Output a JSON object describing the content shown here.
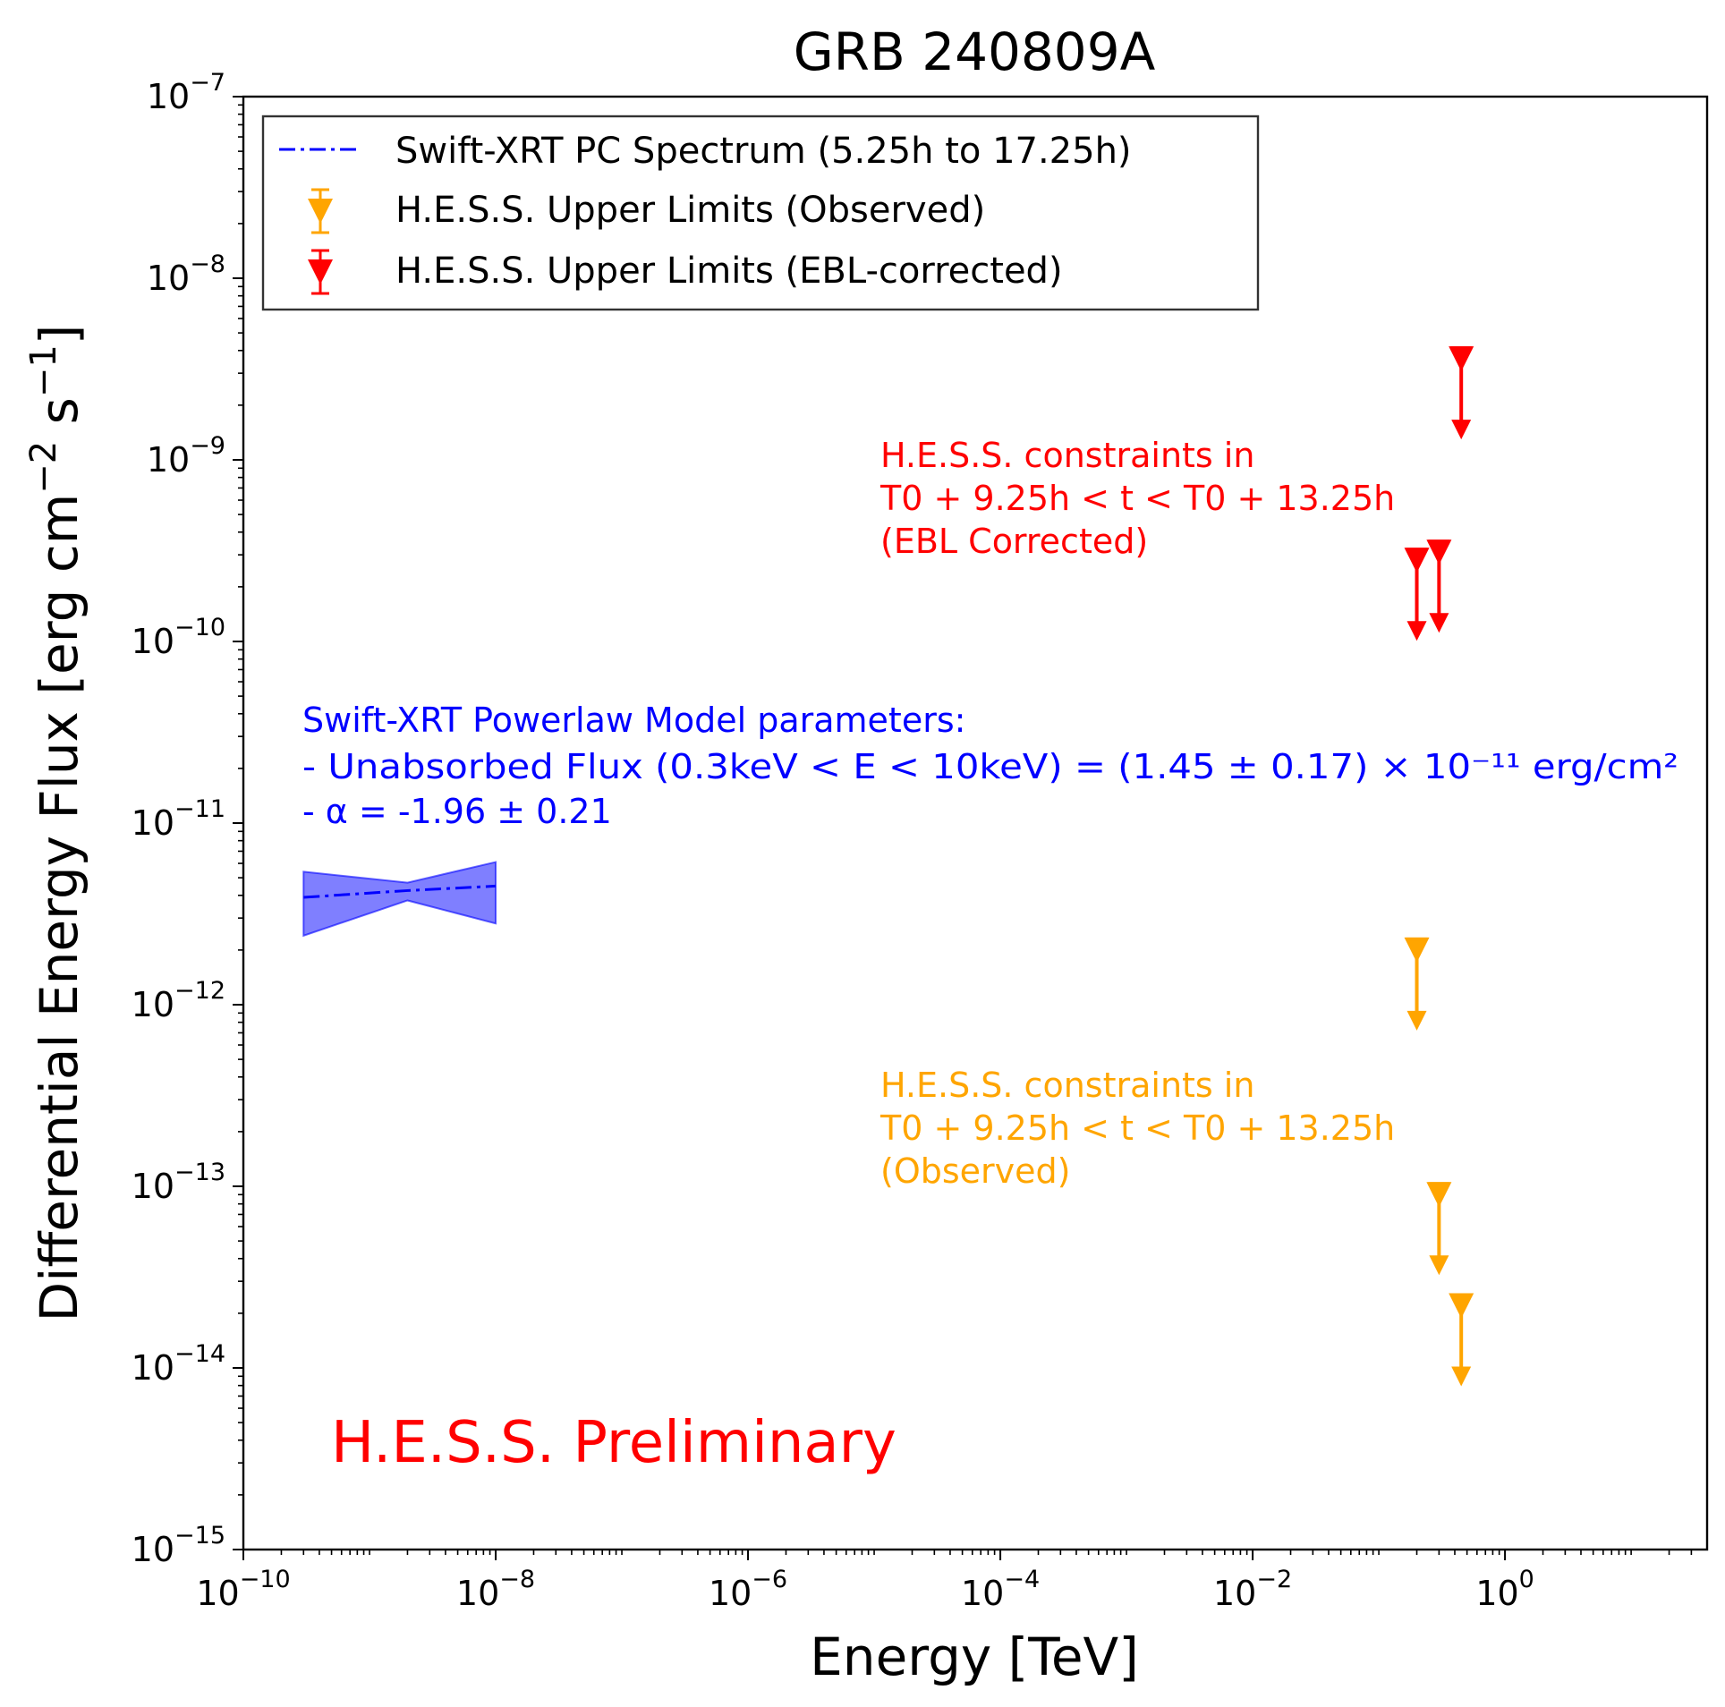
{
  "chart_data": {
    "type": "scatter",
    "title": "GRB 240809A",
    "xlabel": "Energy [TeV]",
    "ylabel": "Differential Energy Flux [erg cm",
    "ylabel_exp1": "−2",
    "ylabel_mid": " s",
    "ylabel_exp2": "−1",
    "ylabel_end": "]",
    "x_scale": "log",
    "y_scale": "log",
    "xlim": [
      1e-10,
      40
    ],
    "ylim": [
      1e-15,
      1e-07
    ],
    "grid": false,
    "legend_position": "top-left",
    "x_ticks": [
      {
        "value": 1e-10,
        "base": "10",
        "exp": "−10"
      },
      {
        "value": 1e-08,
        "base": "10",
        "exp": "−8"
      },
      {
        "value": 1e-06,
        "base": "10",
        "exp": "−6"
      },
      {
        "value": 0.0001,
        "base": "10",
        "exp": "−4"
      },
      {
        "value": 0.01,
        "base": "10",
        "exp": "−2"
      },
      {
        "value": 1,
        "base": "10",
        "exp": "0"
      }
    ],
    "y_ticks": [
      {
        "value": 1e-07,
        "base": "10",
        "exp": "−7"
      },
      {
        "value": 1e-08,
        "base": "10",
        "exp": "−8"
      },
      {
        "value": 1e-09,
        "base": "10",
        "exp": "−9"
      },
      {
        "value": 1e-10,
        "base": "10",
        "exp": "−10"
      },
      {
        "value": 1e-11,
        "base": "10",
        "exp": "−11"
      },
      {
        "value": 1e-12,
        "base": "10",
        "exp": "−12"
      },
      {
        "value": 1e-13,
        "base": "10",
        "exp": "−13"
      },
      {
        "value": 1e-14,
        "base": "10",
        "exp": "−14"
      },
      {
        "value": 1e-15,
        "base": "10",
        "exp": "−15"
      }
    ],
    "legend": [
      {
        "label": "Swift-XRT PC Spectrum (5.25h to 17.25h)",
        "marker": "dashdot-line",
        "color": "#0000ff"
      },
      {
        "label": "H.E.S.S. Upper Limits (Observed)",
        "marker": "down-triangle",
        "color": "#ffa500"
      },
      {
        "label": "H.E.S.S. Upper Limits (EBL-corrected)",
        "marker": "down-triangle",
        "color": "#ff0000"
      }
    ],
    "series": [
      {
        "type": "line_with_band",
        "color": "#0000ff",
        "x": [
          3e-10,
          2e-09,
          1e-08
        ],
        "y": [
          3.9e-12,
          4.25e-12,
          4.5e-12
        ],
        "band_upper": [
          5.4e-12,
          4.7e-12,
          6.1e-12
        ],
        "band_lower": [
          2.4e-12,
          3.75e-12,
          2.8e-12
        ]
      },
      {
        "type": "upper_limits",
        "color": "#ffa500",
        "x": [
          0.2,
          0.3,
          0.45
        ],
        "y": [
          2e-12,
          9e-14,
          2.2e-14
        ]
      },
      {
        "type": "upper_limits",
        "color": "#ff0000",
        "x": [
          0.2,
          0.3,
          0.45
        ],
        "y": [
          2.8e-10,
          3.1e-10,
          3.6e-09
        ]
      }
    ],
    "annotations": {
      "ebl": {
        "color": "#ff0000",
        "lines": [
          "H.E.S.S. constraints in",
          "T0 + 9.25h < t < T0 + 13.25h",
          "(EBL Corrected)"
        ]
      },
      "observed": {
        "color": "#ffa500",
        "lines": [
          "H.E.S.S. constraints in",
          "T0 + 9.25h < t < T0 + 13.25h",
          "(Observed)"
        ]
      },
      "xrt_params": {
        "color": "#0000ff",
        "lines": [
          "Swift-XRT Powerlaw Model parameters:",
          "- Unabsorbed Flux (0.3keV < E < 10keV) = (1.45 ± 0.17) × 10⁻¹¹ erg/cm²",
          "- α = -1.96 ± 0.21"
        ]
      },
      "preliminary": {
        "color": "#ff0000",
        "text": "H.E.S.S. Preliminary"
      }
    }
  }
}
